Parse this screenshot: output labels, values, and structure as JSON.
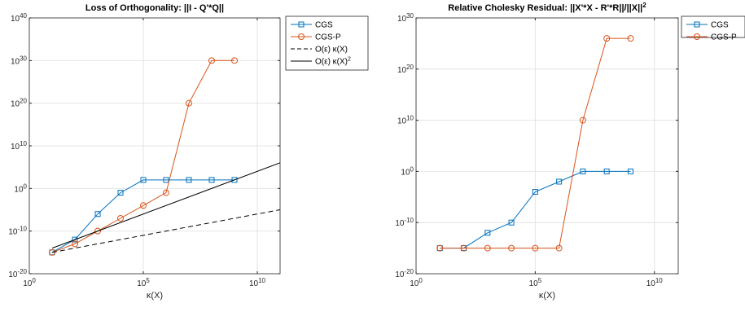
{
  "chart_data": [
    {
      "type": "line",
      "title": "Loss of Orthogonality: ||I - Q'*Q||",
      "xlabel": "κ(X)",
      "ylabel": "",
      "xscale": "log",
      "yscale": "log",
      "xlim": [
        1,
        100000000000.0
      ],
      "ylim": [
        1e-20,
        1e+40
      ],
      "xtick_labels": [
        {
          "base": "10",
          "exp": "0"
        },
        {
          "base": "10",
          "exp": "5"
        },
        {
          "base": "10",
          "exp": "10"
        }
      ],
      "ytick_labels": [
        {
          "base": "10",
          "exp": "-20"
        },
        {
          "base": "10",
          "exp": "-10"
        },
        {
          "base": "10",
          "exp": "0"
        },
        {
          "base": "10",
          "exp": "10"
        },
        {
          "base": "10",
          "exp": "20"
        },
        {
          "base": "10",
          "exp": "30"
        },
        {
          "base": "10",
          "exp": "40"
        }
      ],
      "grid": true,
      "legend_position": "top-right",
      "series": [
        {
          "name": "CGS",
          "color": "#0072BD",
          "marker": "square",
          "dash": "solid",
          "x": [
            10,
            100.0,
            1000.0,
            10000.0,
            100000.0,
            1000000.0,
            10000000.0,
            100000000.0,
            1000000000.0
          ],
          "y": [
            1e-15,
            1e-12,
            1e-06,
            0.1,
            100.0,
            100.0,
            100.0,
            100.0,
            100.0
          ]
        },
        {
          "name": "CGS-P",
          "color": "#D95319",
          "marker": "circle",
          "dash": "solid",
          "x": [
            10,
            100.0,
            1000.0,
            10000.0,
            100000.0,
            1000000.0,
            10000000.0,
            100000000.0,
            1000000000.0
          ],
          "y": [
            1e-15,
            1e-13,
            1e-10,
            1e-07,
            0.0001,
            0.1,
            1e+20,
            1e+30,
            1e+30
          ]
        },
        {
          "name": "O(ε) κ(X)",
          "color": "#000000",
          "marker": "none",
          "dash": "dashed",
          "x": [
            10,
            100000000000.0
          ],
          "y": [
            1e-15,
            1e-05
          ]
        },
        {
          "name": "O(ε) κ(X)²",
          "color": "#000000",
          "marker": "none",
          "dash": "solid",
          "x": [
            10,
            100000000000.0
          ],
          "y": [
            1e-14,
            1000000.0
          ]
        }
      ]
    },
    {
      "type": "line",
      "title": "Relative Cholesky Residual: ||X'*X - R'*R||/||X||²",
      "xlabel": "κ(X)",
      "ylabel": "",
      "xscale": "log",
      "yscale": "log",
      "xlim": [
        1,
        100000000000.0
      ],
      "ylim": [
        1e-20,
        1e+30
      ],
      "xtick_labels": [
        {
          "base": "10",
          "exp": "0"
        },
        {
          "base": "10",
          "exp": "5"
        },
        {
          "base": "10",
          "exp": "10"
        }
      ],
      "ytick_labels": [
        {
          "base": "10",
          "exp": "-20"
        },
        {
          "base": "10",
          "exp": "-10"
        },
        {
          "base": "10",
          "exp": "0"
        },
        {
          "base": "10",
          "exp": "10"
        },
        {
          "base": "10",
          "exp": "20"
        },
        {
          "base": "10",
          "exp": "30"
        }
      ],
      "grid": true,
      "legend_position": "top-right",
      "series": [
        {
          "name": "CGS",
          "color": "#0072BD",
          "marker": "square",
          "dash": "solid",
          "x": [
            10,
            100.0,
            1000.0,
            10000.0,
            100000.0,
            1000000.0,
            10000000.0,
            100000000.0,
            1000000000.0
          ],
          "y": [
            1e-15,
            1e-15,
            1e-12,
            1e-10,
            0.0001,
            0.01,
            1.0,
            1.0,
            1.0
          ]
        },
        {
          "name": "CGS-P",
          "color": "#D95319",
          "marker": "circle",
          "dash": "solid",
          "x": [
            10,
            100.0,
            1000.0,
            10000.0,
            100000.0,
            1000000.0,
            10000000.0,
            100000000.0,
            1000000000.0
          ],
          "y": [
            1e-15,
            1e-15,
            1e-15,
            1e-15,
            1e-15,
            1e-15,
            10000000000.0,
            1e+26,
            1e+26
          ]
        }
      ]
    }
  ]
}
